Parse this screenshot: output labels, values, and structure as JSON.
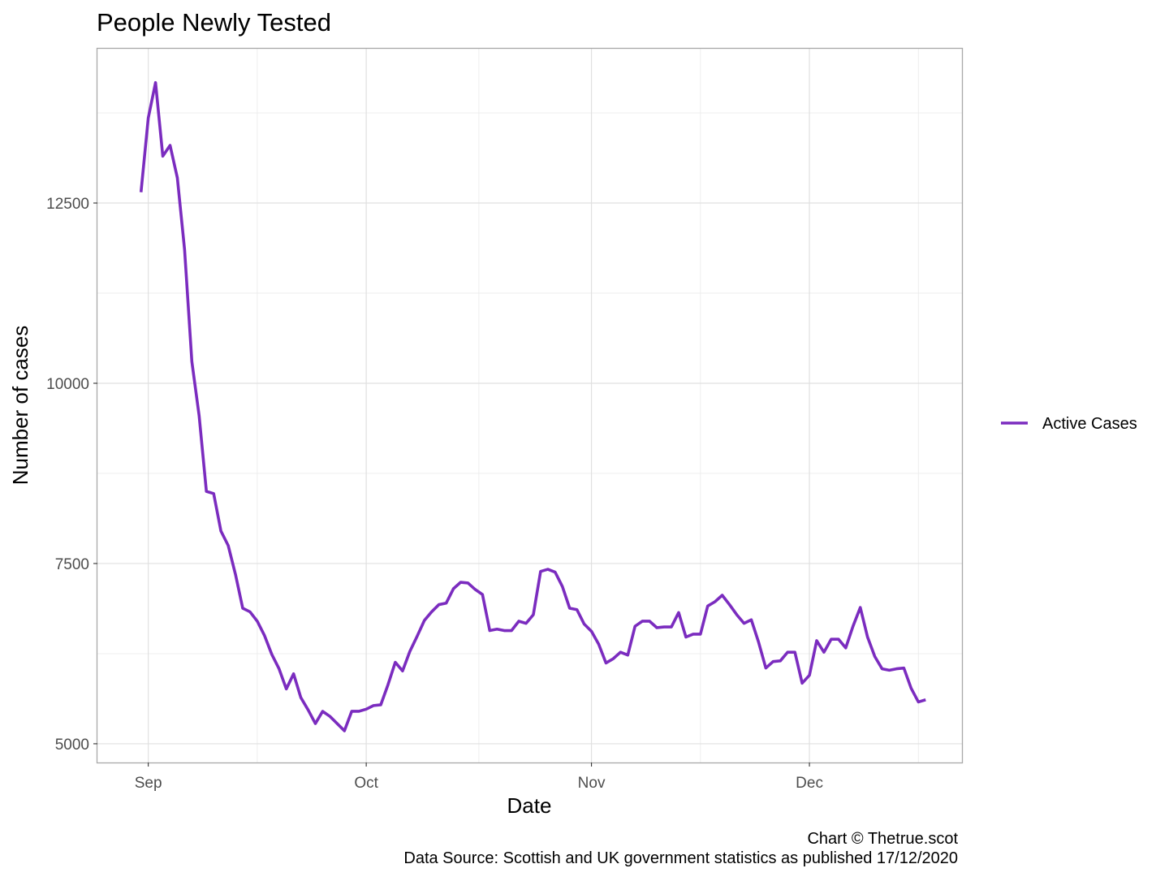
{
  "chart_data": {
    "type": "line",
    "title": "People Newly Tested",
    "xlabel": "Date",
    "ylabel": "Number of cases",
    "x_ticks": [
      {
        "label": "Sep",
        "date": "2020-09-01"
      },
      {
        "label": "Oct",
        "date": "2020-10-01"
      },
      {
        "label": "Nov",
        "date": "2020-11-01"
      },
      {
        "label": "Dec",
        "date": "2020-12-01"
      }
    ],
    "y_ticks": [
      5000,
      7500,
      10000,
      12500
    ],
    "ylim": [
      4740,
      14640
    ],
    "xlim": [
      "2020-08-25",
      "2020-12-22"
    ],
    "grid": true,
    "legend_position": "right",
    "series": [
      {
        "name": "Active Cases",
        "color": "#7b2cbf",
        "x": [
          "2020-08-31",
          "2020-09-01",
          "2020-09-02",
          "2020-09-03",
          "2020-09-04",
          "2020-09-05",
          "2020-09-06",
          "2020-09-07",
          "2020-09-08",
          "2020-09-09",
          "2020-09-10",
          "2020-09-11",
          "2020-09-12",
          "2020-09-13",
          "2020-09-14",
          "2020-09-15",
          "2020-09-16",
          "2020-09-17",
          "2020-09-18",
          "2020-09-19",
          "2020-09-20",
          "2020-09-21",
          "2020-09-22",
          "2020-09-23",
          "2020-09-24",
          "2020-09-25",
          "2020-09-26",
          "2020-09-27",
          "2020-09-28",
          "2020-09-29",
          "2020-09-30",
          "2020-10-01",
          "2020-10-02",
          "2020-10-03",
          "2020-10-04",
          "2020-10-05",
          "2020-10-06",
          "2020-10-07",
          "2020-10-08",
          "2020-10-09",
          "2020-10-10",
          "2020-10-11",
          "2020-10-12",
          "2020-10-13",
          "2020-10-14",
          "2020-10-15",
          "2020-10-16",
          "2020-10-17",
          "2020-10-18",
          "2020-10-19",
          "2020-10-20",
          "2020-10-21",
          "2020-10-22",
          "2020-10-23",
          "2020-10-24",
          "2020-10-25",
          "2020-10-26",
          "2020-10-27",
          "2020-10-28",
          "2020-10-29",
          "2020-10-30",
          "2020-10-31",
          "2020-11-01",
          "2020-11-02",
          "2020-11-03",
          "2020-11-04",
          "2020-11-05",
          "2020-11-06",
          "2020-11-07",
          "2020-11-08",
          "2020-11-09",
          "2020-11-10",
          "2020-11-11",
          "2020-11-12",
          "2020-11-13",
          "2020-11-14",
          "2020-11-15",
          "2020-11-16",
          "2020-11-17",
          "2020-11-18",
          "2020-11-19",
          "2020-11-20",
          "2020-11-21",
          "2020-11-22",
          "2020-11-23",
          "2020-11-24",
          "2020-11-25",
          "2020-11-26",
          "2020-11-27",
          "2020-11-28",
          "2020-11-29",
          "2020-11-30",
          "2020-12-01",
          "2020-12-02",
          "2020-12-03",
          "2020-12-04",
          "2020-12-05",
          "2020-12-06",
          "2020-12-07",
          "2020-12-08",
          "2020-12-09",
          "2020-12-10",
          "2020-12-11",
          "2020-12-12",
          "2020-12-13",
          "2020-12-14",
          "2020-12-15",
          "2020-12-16",
          "2020-12-17"
        ],
        "values": [
          12650,
          13680,
          14170,
          13150,
          13300,
          12850,
          11850,
          10300,
          9550,
          8500,
          8470,
          7950,
          7750,
          7350,
          6880,
          6830,
          6700,
          6500,
          6240,
          6040,
          5760,
          5970,
          5640,
          5470,
          5280,
          5450,
          5380,
          5280,
          5180,
          5450,
          5450,
          5480,
          5530,
          5540,
          5820,
          6130,
          6010,
          6280,
          6490,
          6710,
          6830,
          6930,
          6950,
          7150,
          7240,
          7230,
          7140,
          7070,
          6570,
          6590,
          6570,
          6570,
          6700,
          6670,
          6790,
          7390,
          7420,
          7380,
          7180,
          6880,
          6860,
          6660,
          6560,
          6380,
          6120,
          6180,
          6270,
          6230,
          6630,
          6700,
          6700,
          6610,
          6620,
          6620,
          6820,
          6480,
          6520,
          6520,
          6910,
          6970,
          7060,
          6930,
          6790,
          6670,
          6720,
          6410,
          6050,
          6140,
          6150,
          6270,
          6270,
          5840,
          5950,
          6430,
          6270,
          6450,
          6450,
          6330,
          6630,
          6890,
          6480,
          6210,
          6040,
          6020,
          6040,
          6050,
          5770,
          5580,
          5610
        ]
      }
    ]
  },
  "caption": {
    "line1": "Chart © Thetrue.scot",
    "line2": "Data Source: Scottish and UK government statistics as published 17/12/2020"
  }
}
